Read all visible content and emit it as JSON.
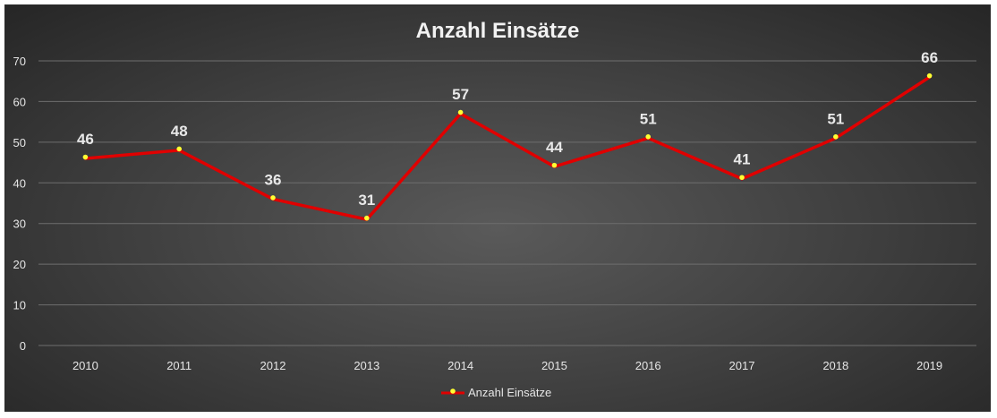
{
  "chart_data": {
    "type": "line",
    "title": "Anzahl Einsätze",
    "xlabel": "",
    "ylabel": "",
    "categories": [
      "2010",
      "2011",
      "2012",
      "2013",
      "2014",
      "2015",
      "2016",
      "2017",
      "2018",
      "2019"
    ],
    "series": [
      {
        "name": "Anzahl Einsätze",
        "values": [
          46,
          48,
          36,
          31,
          57,
          44,
          51,
          41,
          51,
          66
        ],
        "line_color": "#e00000",
        "marker_color": "#ffff33"
      }
    ],
    "ylim": [
      0,
      70
    ],
    "yticks": [
      "0",
      "10",
      "20",
      "30",
      "40",
      "50",
      "60",
      "70"
    ],
    "grid": true,
    "legend_position": "bottom",
    "data_labels": true,
    "background_colors": [
      "#5a5a5a",
      "#262626"
    ]
  }
}
